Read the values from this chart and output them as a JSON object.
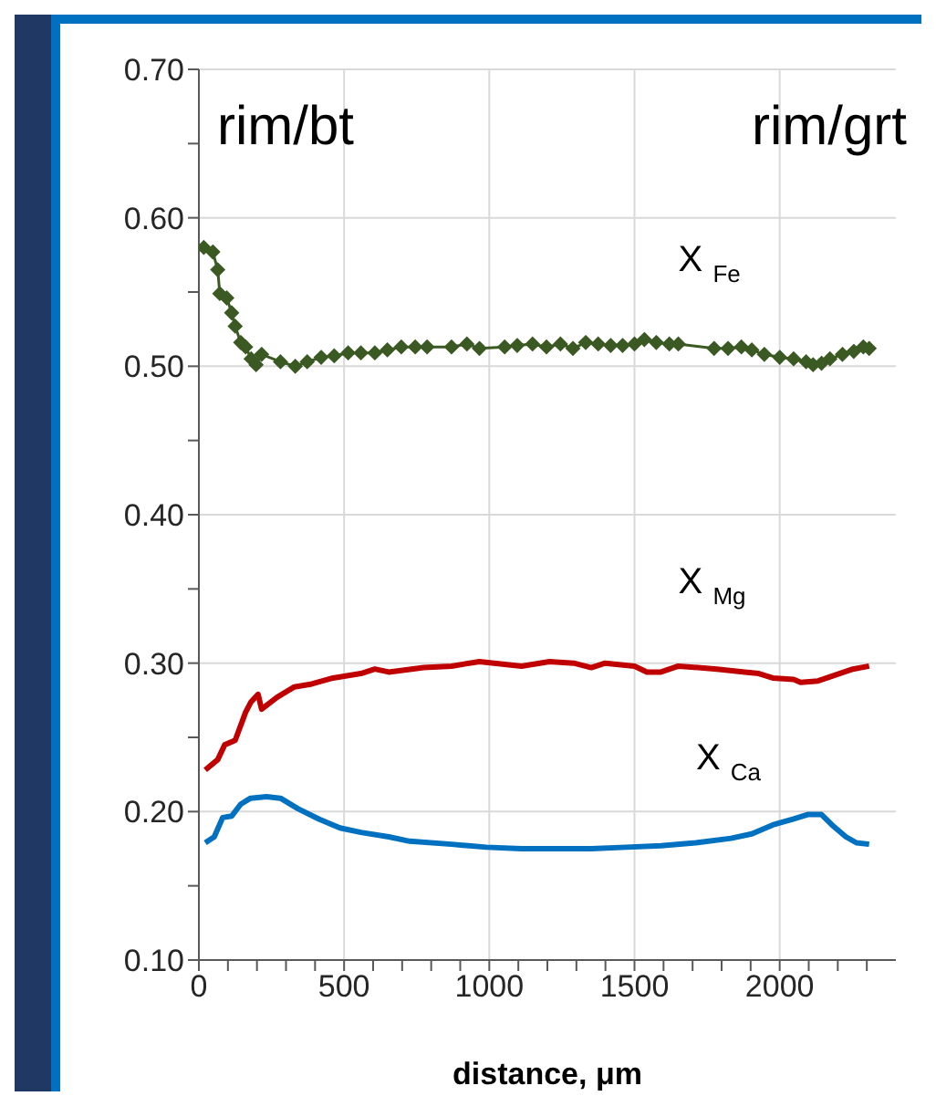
{
  "chart_data": {
    "type": "line",
    "xlabel": "distance, μm",
    "annotations": [
      "rim/bt",
      "rim/grt"
    ],
    "xlim": [
      0,
      2400
    ],
    "xticks": [
      0,
      {
        "value": 100,
        "label": null
      },
      {
        "value": 200,
        "label": null
      },
      {
        "value": 300,
        "label": null
      },
      {
        "value": 400,
        "label": null
      },
      500,
      {
        "value": 600,
        "label": null
      },
      {
        "value": 700,
        "label": null
      },
      {
        "value": 800,
        "label": null
      },
      {
        "value": 900,
        "label": null
      },
      1000,
      {
        "value": 1100,
        "label": null
      },
      {
        "value": 1200,
        "label": null
      },
      {
        "value": 1300,
        "label": null
      },
      {
        "value": 1400,
        "label": null
      },
      1500,
      {
        "value": 1600,
        "label": null
      },
      {
        "value": 1700,
        "label": null
      },
      {
        "value": 1800,
        "label": null
      },
      {
        "value": 1900,
        "label": null
      },
      2000,
      {
        "value": 2100,
        "label": null
      },
      {
        "value": 2200,
        "label": null
      },
      {
        "value": 2300,
        "label": null
      }
    ],
    "ylim": [
      0.1,
      0.7
    ],
    "yticks": [
      {
        "value": 0.1,
        "label": "0.10"
      },
      {
        "value": 0.15,
        "label": null
      },
      {
        "value": 0.2,
        "label": "0.20"
      },
      {
        "value": 0.25,
        "label": null
      },
      {
        "value": 0.3,
        "label": "0.30"
      },
      {
        "value": 0.35,
        "label": null
      },
      {
        "value": 0.4,
        "label": "0.40"
      },
      {
        "value": 0.45,
        "label": null
      },
      {
        "value": 0.5,
        "label": "0.50"
      },
      {
        "value": 0.55,
        "label": null
      },
      {
        "value": 0.6,
        "label": "0.60"
      },
      {
        "value": 0.65,
        "label": null
      },
      {
        "value": 0.7,
        "label": "0.70"
      }
    ],
    "grid": true,
    "legend": false,
    "series": [
      {
        "name": "X $_{Fe}$",
        "color": "#3b5a23",
        "marker": "diamond",
        "x": [
          17,
          48,
          65,
          72,
          96,
          113,
          125,
          144,
          161,
          180,
          197,
          216,
          281,
          332,
          373,
          421,
          466,
          514,
          558,
          606,
          649,
          697,
          745,
          786,
          870,
          923,
          966,
          1053,
          1096,
          1149,
          1197,
          1245,
          1288,
          1332,
          1375,
          1418,
          1459,
          1500,
          1534,
          1575,
          1620,
          1651,
          1774,
          1822,
          1868,
          1904,
          1947,
          2000,
          2048,
          2091,
          2115,
          2144,
          2173,
          2216,
          2255,
          2288,
          2308
        ],
        "values": [
          0.58,
          0.577,
          0.565,
          0.549,
          0.546,
          0.536,
          0.527,
          0.516,
          0.513,
          0.505,
          0.501,
          0.508,
          0.503,
          0.5,
          0.503,
          0.506,
          0.507,
          0.509,
          0.509,
          0.509,
          0.511,
          0.513,
          0.513,
          0.513,
          0.513,
          0.515,
          0.512,
          0.513,
          0.514,
          0.515,
          0.513,
          0.515,
          0.512,
          0.516,
          0.515,
          0.514,
          0.514,
          0.515,
          0.518,
          0.516,
          0.515,
          0.515,
          0.512,
          0.512,
          0.513,
          0.511,
          0.508,
          0.506,
          0.505,
          0.503,
          0.501,
          0.502,
          0.505,
          0.508,
          0.51,
          0.513,
          0.512
        ]
      },
      {
        "name": "X $_{Mg}$",
        "color": "#c00000",
        "marker": "none",
        "x": [
          22,
          65,
          89,
          125,
          161,
          180,
          204,
          216,
          269,
          329,
          389,
          462,
          558,
          606,
          654,
          774,
          870,
          966,
          1111,
          1207,
          1291,
          1351,
          1399,
          1500,
          1543,
          1591,
          1651,
          1784,
          1880,
          1928,
          1976,
          2048,
          2072,
          2132,
          2192,
          2252,
          2308
        ],
        "values": [
          0.228,
          0.235,
          0.245,
          0.248,
          0.267,
          0.274,
          0.279,
          0.269,
          0.277,
          0.284,
          0.286,
          0.29,
          0.293,
          0.296,
          0.294,
          0.297,
          0.298,
          0.301,
          0.298,
          0.301,
          0.3,
          0.297,
          0.3,
          0.298,
          0.294,
          0.294,
          0.298,
          0.296,
          0.294,
          0.293,
          0.29,
          0.289,
          0.287,
          0.288,
          0.292,
          0.296,
          0.298
        ]
      },
      {
        "name": "X $_{Ca}$",
        "color": "#0070c0",
        "marker": "none",
        "x": [
          22,
          53,
          82,
          113,
          144,
          178,
          233,
          281,
          341,
          413,
          486,
          558,
          654,
          726,
          870,
          990,
          1111,
          1351,
          1471,
          1591,
          1712,
          1832,
          1904,
          1976,
          2048,
          2096,
          2144,
          2180,
          2228,
          2264,
          2308
        ],
        "values": [
          0.179,
          0.183,
          0.196,
          0.197,
          0.205,
          0.209,
          0.21,
          0.209,
          0.202,
          0.195,
          0.189,
          0.186,
          0.183,
          0.18,
          0.178,
          0.176,
          0.175,
          0.175,
          0.176,
          0.177,
          0.179,
          0.182,
          0.185,
          0.191,
          0.195,
          0.198,
          0.198,
          0.191,
          0.183,
          0.179,
          0.178
        ]
      }
    ]
  }
}
